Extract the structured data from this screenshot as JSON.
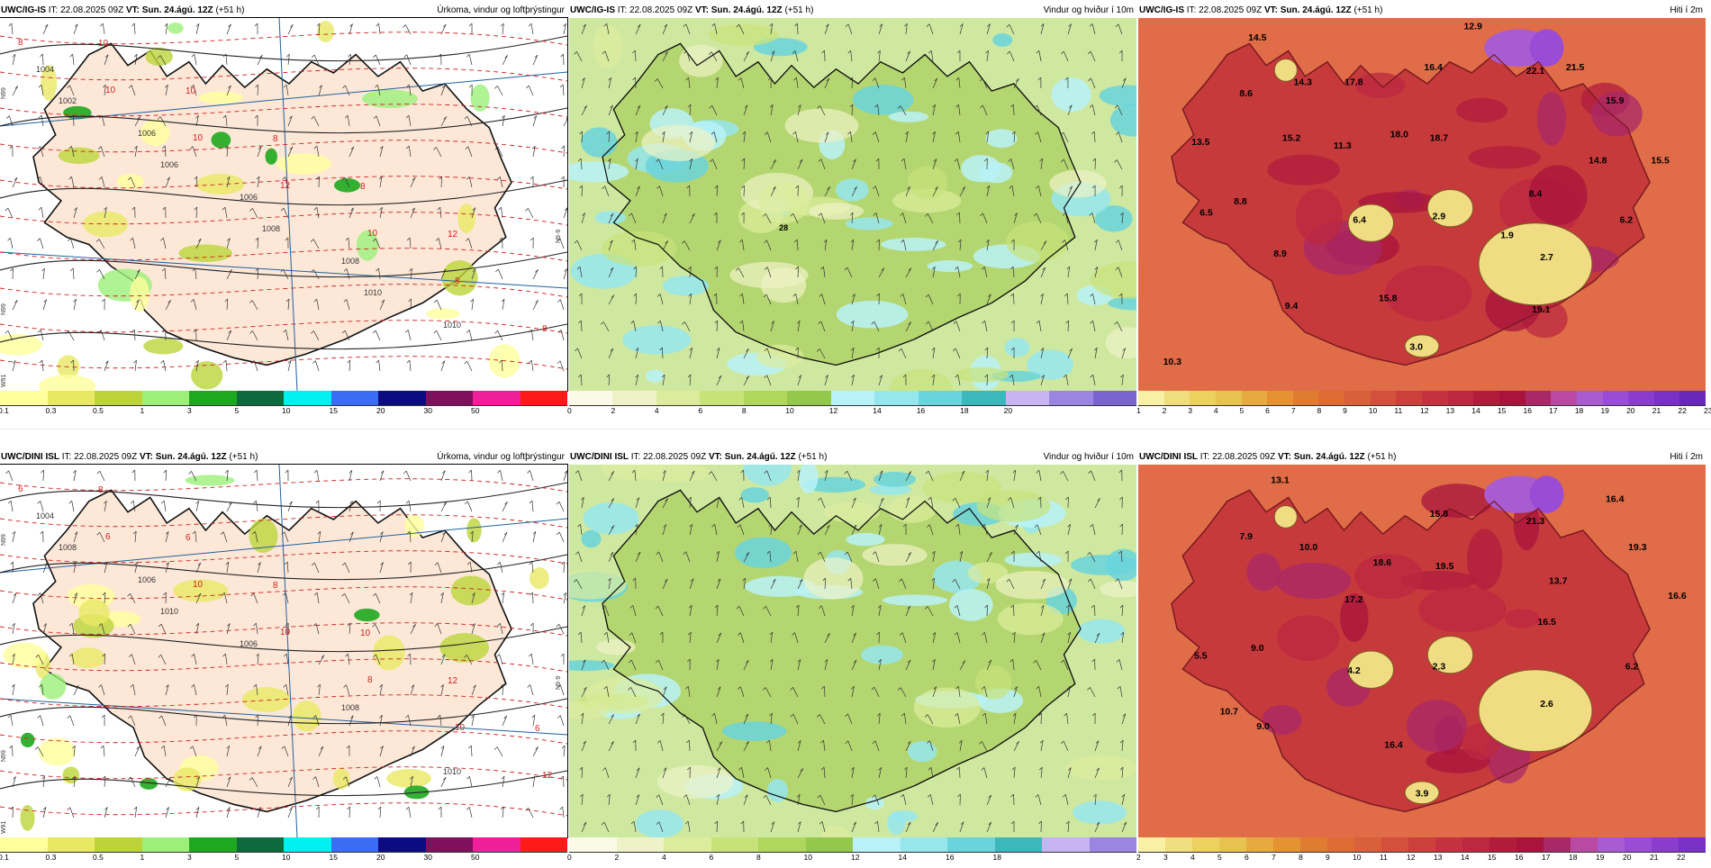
{
  "rows": [
    {
      "id": "row1",
      "panels": [
        {
          "model": "UWC/IG-IS",
          "it_label": "IT:",
          "it_value": "22.08.2025 09Z",
          "vt_label": "VT:",
          "vt_value": "Sun. 24.ágú. 12Z",
          "lead": "(+51 h)",
          "title": "Úrkoma, vindur og loftþrýstingur",
          "kind": "precip",
          "colorbar": {
            "colors": [
              "#ffff9c",
              "#e8e864",
              "#bcd43a",
              "#9cf07a",
              "#1ea81e",
              "#0c6a3c",
              "#00f0f0",
              "#3a6cf4",
              "#0c0c80",
              "#80105c",
              "#f01e98",
              "#ff1a1a"
            ],
            "ticks": [
              "0.1",
              "0.3",
              "0.5",
              "1",
              "3",
              "5",
              "10",
              "15",
              "20",
              "30",
              "50"
            ]
          },
          "isobar_labels": [
            "1004",
            "1006",
            "1006",
            "1008",
            "1010",
            "1002",
            "1006",
            "1008",
            "1010"
          ],
          "temp_labels": [
            "8",
            "10",
            "10",
            "12",
            "10",
            "8",
            "8",
            "10",
            "10",
            "8",
            "8",
            "12"
          ],
          "lat_labels": [
            "N99",
            "N9·9",
            "N99",
            "W91"
          ],
          "map_labels": []
        },
        {
          "model": "UWC/IG-IS",
          "it_label": "IT:",
          "it_value": "22.08.2025 09Z",
          "vt_label": "VT:",
          "vt_value": "Sun. 24.ágú. 12Z",
          "lead": "(+51 h)",
          "title": "Vindur og hviður í 10m",
          "kind": "wind",
          "colorbar": {
            "colors": [
              "#fafae6",
              "#eef2c6",
              "#dcec9c",
              "#c8e27a",
              "#b0d65c",
              "#94c84c",
              "#b8f2f8",
              "#96e6ee",
              "#6ad4dc",
              "#3cb8bc",
              "#c8b4f0",
              "#9a86e2",
              "#7a64d0"
            ],
            "ticks": [
              "0",
              "2",
              "4",
              "6",
              "8",
              "10",
              "12",
              "14",
              "16",
              "18",
              "20"
            ]
          },
          "map_labels": [
            "28"
          ]
        },
        {
          "model": "UWC/IG-IS",
          "it_label": "IT:",
          "it_value": "22.08.2025 09Z",
          "vt_label": "VT:",
          "vt_value": "Sun. 24.ágú. 12Z",
          "lead": "(+51 h)",
          "title": "Hiti í 2m",
          "kind": "temp",
          "colorbar": {
            "colors": [
              "#f8f0a4",
              "#f0de7e",
              "#ecd060",
              "#e6c24e",
              "#e6aa40",
              "#e49234",
              "#e07c30",
              "#dc6c34",
              "#d8603a",
              "#d2503c",
              "#cc403c",
              "#c43240",
              "#bc2840",
              "#b01c3c",
              "#a8143c",
              "#a82868",
              "#b84aa4",
              "#a85cd0",
              "#9a4cd6",
              "#8a3ccc",
              "#7a30c4",
              "#6a28b8"
            ],
            "ticks": [
              "1",
              "2",
              "3",
              "4",
              "5",
              "6",
              "7",
              "8",
              "9",
              "10",
              "11",
              "12",
              "13",
              "14",
              "15",
              "16",
              "17",
              "18",
              "19",
              "20",
              "21",
              "22",
              "23"
            ]
          },
          "map_labels": [
            "12.9",
            "14.5",
            "14.3",
            "8.6",
            "17.8",
            "16.4",
            "22.1",
            "21.5",
            "15.9",
            "13.5",
            "15.2",
            "11.3",
            "18.0",
            "18.7",
            "14.8",
            "15.5",
            "8.4",
            "8.8",
            "6.5",
            "6.4",
            "2.9",
            "1.9",
            "6.2",
            "8.9",
            "2.7",
            "9.4",
            "15.8",
            "19.1",
            "3.0",
            "10.3"
          ]
        }
      ]
    },
    {
      "id": "row2",
      "panels": [
        {
          "model": "UWC/DINI ISL",
          "it_label": "IT:",
          "it_value": "22.08.2025 09Z",
          "vt_label": "VT:",
          "vt_value": "Sun. 24.ágú. 12Z",
          "lead": "(+51 h)",
          "title": "Úrkoma, vindur og loftþrýstingur",
          "kind": "precip",
          "colorbar": {
            "colors": [
              "#ffff9c",
              "#e8e864",
              "#bcd43a",
              "#9cf07a",
              "#1ea81e",
              "#0c6a3c",
              "#00f0f0",
              "#3a6cf4",
              "#0c0c80",
              "#80105c",
              "#f01e98",
              "#ff1a1a"
            ],
            "ticks": [
              "0.1",
              "0.3",
              "0.5",
              "1",
              "3",
              "5",
              "10",
              "15",
              "20",
              "30",
              "50"
            ]
          },
          "isobar_labels": [
            "1004",
            "1006",
            "1006",
            "1008",
            "1010",
            "1008",
            "1010"
          ],
          "temp_labels": [
            "6",
            "6",
            "10",
            "10",
            "8",
            "10",
            "12",
            "8",
            "6",
            "8",
            "10",
            "12",
            "6"
          ],
          "lat_labels": [
            "N99",
            "N9·9",
            "N99",
            "W91"
          ],
          "map_labels": []
        },
        {
          "model": "UWC/DINI ISL",
          "it_label": "IT:",
          "it_value": "22.08.2025 09Z",
          "vt_label": "VT:",
          "vt_value": "Sun. 24.ágú. 12Z",
          "lead": "(+51 h)",
          "title": "Vindur og hviður í 10m",
          "kind": "wind",
          "colorbar": {
            "colors": [
              "#fafae6",
              "#eef2c6",
              "#dcec9c",
              "#c8e27a",
              "#b0d65c",
              "#94c84c",
              "#b8f2f8",
              "#96e6ee",
              "#6ad4dc",
              "#3cb8bc",
              "#c8b4f0",
              "#9a86e2"
            ],
            "ticks": [
              "0",
              "2",
              "4",
              "6",
              "8",
              "10",
              "12",
              "14",
              "16",
              "18"
            ]
          },
          "map_labels": []
        },
        {
          "model": "UWC/DINI ISL",
          "it_label": "IT:",
          "it_value": "22.08.2025 09Z",
          "vt_label": "VT:",
          "vt_value": "Sun. 24.ágú. 12Z",
          "lead": "(+51 h)",
          "title": "Hiti í 2m",
          "kind": "temp",
          "colorbar": {
            "colors": [
              "#f8f0a4",
              "#f0de7e",
              "#ecd060",
              "#e6c24e",
              "#e6aa40",
              "#e49234",
              "#e07c30",
              "#dc6c34",
              "#d8603a",
              "#d2503c",
              "#cc403c",
              "#c43240",
              "#bc2840",
              "#b01c3c",
              "#a8143c",
              "#a82868",
              "#b84aa4",
              "#a85cd0",
              "#9a4cd6",
              "#8a3ccc",
              "#7a30c4"
            ],
            "ticks": [
              "2",
              "3",
              "4",
              "5",
              "6",
              "7",
              "8",
              "9",
              "10",
              "11",
              "12",
              "13",
              "14",
              "15",
              "16",
              "17",
              "18",
              "19",
              "20",
              "21",
              "22"
            ]
          },
          "map_labels": [
            "13.1",
            "15.8",
            "16.4",
            "21.3",
            "7.9",
            "10.0",
            "19.3",
            "18.6",
            "19.5",
            "17.2",
            "13.7",
            "16.6",
            "5.5",
            "9.0",
            "16.5",
            "4.2",
            "2.3",
            "6.2",
            "10.7",
            "9.0",
            "2.6",
            "16.4",
            "3.9"
          ]
        }
      ]
    }
  ]
}
